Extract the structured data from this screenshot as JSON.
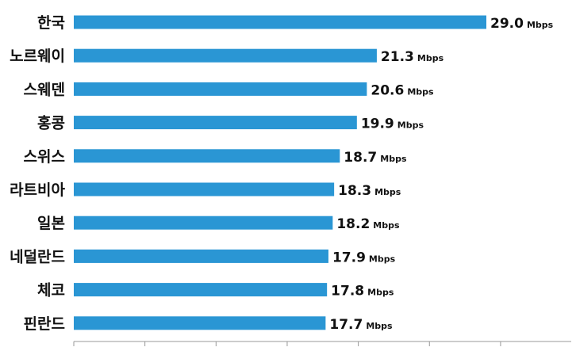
{
  "chart_data": {
    "type": "bar",
    "orientation": "horizontal",
    "categories": [
      "한국",
      "노르웨이",
      "스웨덴",
      "홍콩",
      "스위스",
      "라트비아",
      "일본",
      "네덜란드",
      "체코",
      "핀란드"
    ],
    "values": [
      29.0,
      21.3,
      20.6,
      19.9,
      18.7,
      18.3,
      18.2,
      17.9,
      17.8,
      17.7
    ],
    "value_labels": [
      "29.0",
      "21.3",
      "20.6",
      "19.9",
      "18.7",
      "18.3",
      "18.2",
      "17.9",
      "17.8",
      "17.7"
    ],
    "unit": "Mbps",
    "xlim": [
      0,
      35
    ],
    "grid": false,
    "legend": "none",
    "colors": {
      "bar": "#2a96d4",
      "axis": "#999999",
      "text": "#111111"
    }
  }
}
